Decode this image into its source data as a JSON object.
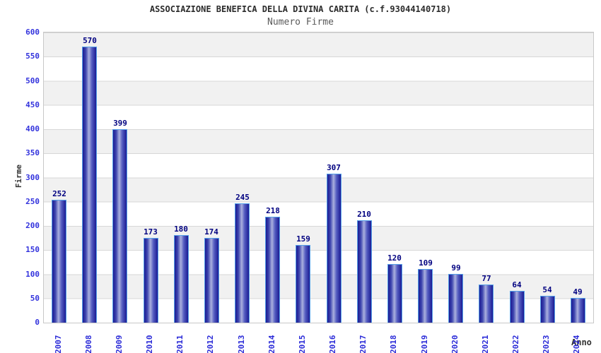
{
  "header": {
    "title": "ASSOCIAZIONE BENEFICA DELLA DIVINA CARITA (c.f.93044140718)",
    "subtitle": "Numero Firme"
  },
  "chart_data": {
    "type": "bar",
    "title": "ASSOCIAZIONE BENEFICA DELLA DIVINA CARITA (c.f.93044140718)",
    "subtitle": "Numero Firme",
    "xlabel": "Anno",
    "ylabel": "Firme",
    "categories": [
      "2007",
      "2008",
      "2009",
      "2010",
      "2011",
      "2012",
      "2013",
      "2014",
      "2015",
      "2016",
      "2017",
      "2018",
      "2019",
      "2020",
      "2021",
      "2022",
      "2023",
      "2024"
    ],
    "values": [
      252,
      570,
      399,
      173,
      180,
      174,
      245,
      218,
      159,
      307,
      210,
      120,
      109,
      99,
      77,
      64,
      54,
      49
    ],
    "ylim": [
      0,
      600
    ],
    "ytick_step": 50,
    "grid": "horizontal-bands-alternating",
    "legend": "none",
    "colors": {
      "bar_edge": "#1b1b93",
      "bar_highlight": "#aab0de",
      "bar_outline": "#55a0e8",
      "tick_label": "#3333dd",
      "value_label": "#000080",
      "band_gray": "#f1f1f1",
      "band_white": "#ffffff",
      "axis_title": "#333333",
      "title": "#2b2b2b",
      "subtitle": "#5a5a5a"
    }
  }
}
